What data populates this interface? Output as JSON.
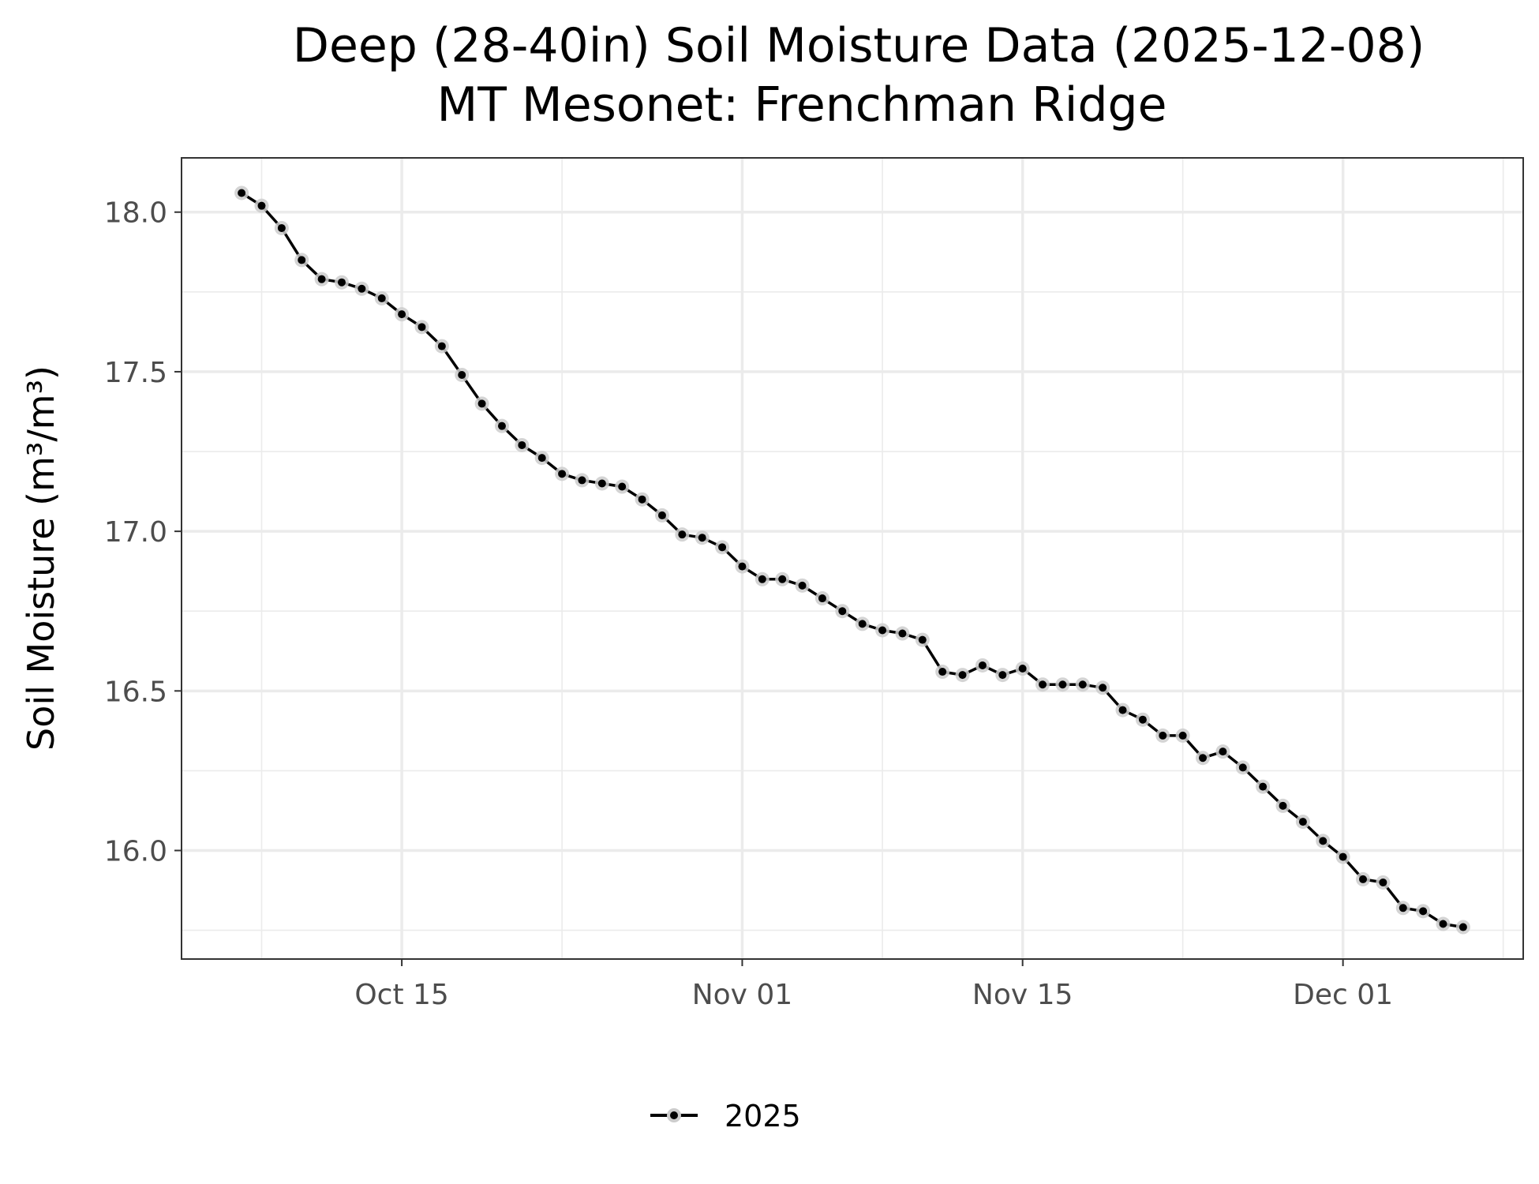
{
  "chart_data": {
    "type": "line",
    "title": "Deep (28-40in) Soil Moisture Data (2025-12-08)",
    "subtitle": "MT Mesonet: Frenchman Ridge",
    "xlabel": "",
    "ylabel": "Soil Moisture (m³/m³)",
    "x_axis": {
      "type": "date",
      "range": [
        "2025-10-04",
        "2025-12-10"
      ],
      "ticks": [
        {
          "date": "2025-10-15",
          "label": "Oct 15"
        },
        {
          "date": "2025-11-01",
          "label": "Nov 01"
        },
        {
          "date": "2025-11-15",
          "label": "Nov 15"
        },
        {
          "date": "2025-12-01",
          "label": "Dec 01"
        }
      ],
      "minor_ticks": [
        "2025-10-08",
        "2025-10-23",
        "2025-11-08",
        "2025-11-23",
        "2025-12-09"
      ]
    },
    "y_axis": {
      "range": [
        15.66,
        18.17
      ],
      "ticks": [
        {
          "value": 16.0,
          "label": "16.0"
        },
        {
          "value": 16.5,
          "label": "16.5"
        },
        {
          "value": 17.0,
          "label": "17.0"
        },
        {
          "value": 17.5,
          "label": "17.5"
        },
        {
          "value": 18.0,
          "label": "18.0"
        }
      ],
      "minor_ticks": [
        15.75,
        16.25,
        16.75,
        17.25,
        17.75
      ]
    },
    "grid": true,
    "legend": {
      "position": "bottom"
    },
    "colors": {
      "line": "#000000",
      "point_halo": "#cccccc",
      "grid": "#ebebeb",
      "panel_border": "#333333"
    },
    "series": [
      {
        "name": "2025",
        "start_date": "2025-10-07",
        "values": [
          18.06,
          18.02,
          17.95,
          17.85,
          17.79,
          17.78,
          17.76,
          17.73,
          17.68,
          17.64,
          17.58,
          17.49,
          17.4,
          17.33,
          17.27,
          17.23,
          17.18,
          17.16,
          17.15,
          17.14,
          17.1,
          17.05,
          16.99,
          16.98,
          16.95,
          16.89,
          16.85,
          16.85,
          16.83,
          16.79,
          16.75,
          16.71,
          16.69,
          16.68,
          16.66,
          16.56,
          16.55,
          16.58,
          16.55,
          16.57,
          16.52,
          16.52,
          16.52,
          16.51,
          16.44,
          16.41,
          16.36,
          16.36,
          16.29,
          16.31,
          16.26,
          16.2,
          16.14,
          16.09,
          16.03,
          15.98,
          15.91,
          15.9,
          15.82,
          15.81,
          15.77,
          15.76
        ]
      }
    ]
  }
}
